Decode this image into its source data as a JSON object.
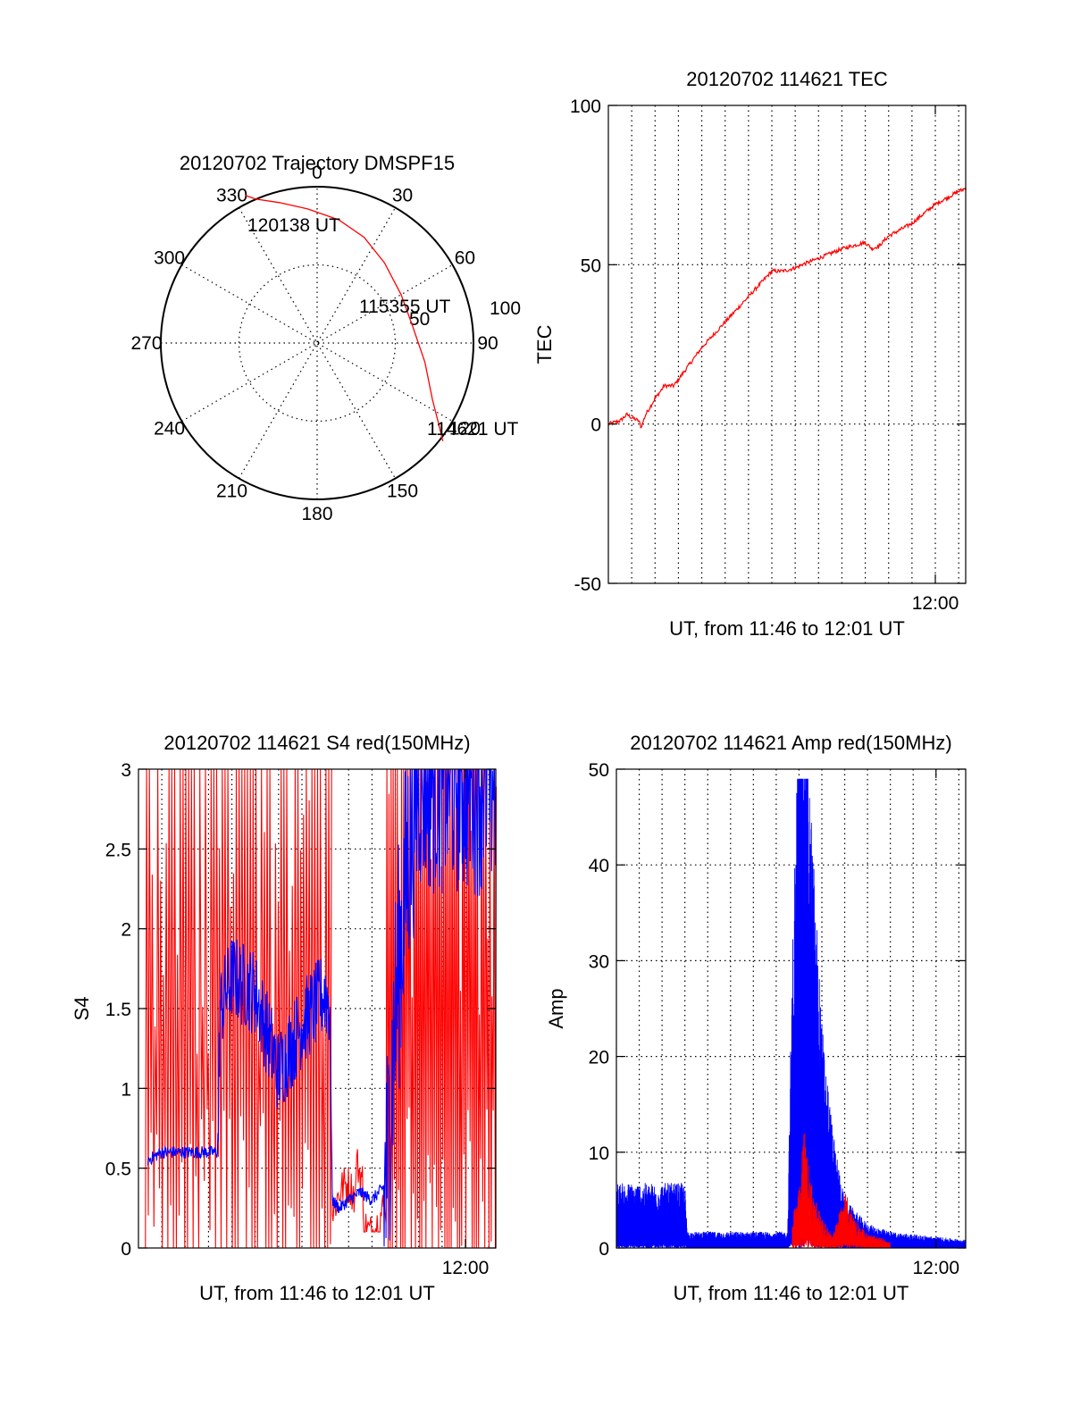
{
  "polar": {
    "title": "20120702 Trajectory DMSPF15",
    "azimuth_ticks": [
      "0",
      "30",
      "60",
      "90",
      "120",
      "150",
      "180",
      "210",
      "240",
      "270",
      "300",
      "330"
    ],
    "radial_labels": [
      "50",
      "100"
    ],
    "annotations": [
      "120138 UT",
      "115355 UT",
      "114621 UT"
    ],
    "line_color": "#ff0000"
  },
  "chart_data": [
    {
      "type": "polar-line",
      "title": "20120702 Trajectory DMSPF15",
      "series": [
        {
          "azimuth": [
            334,
            337,
            345,
            356,
            10,
            24,
            40,
            60,
            80,
            100,
            116,
            124,
            128
          ],
          "radius": [
            105,
            100,
            93,
            86,
            80,
            74,
            67,
            62,
            62,
            70,
            82,
            94,
            102
          ]
        }
      ],
      "point_labels": [
        {
          "label": "120138 UT",
          "azimuth": 334,
          "radius": 105
        },
        {
          "label": "115355 UT",
          "azimuth": 58,
          "radius": 62
        },
        {
          "label": "114621 UT",
          "azimuth": 128,
          "radius": 102
        }
      ],
      "rlim": [
        0,
        100
      ]
    },
    {
      "type": "line",
      "title": "20120702 114621 TEC",
      "xlabel": "UT, from 11:46 to 12:01 UT",
      "ylabel": "TEC",
      "xlim": [
        0,
        15.3
      ],
      "ylim": [
        -50,
        100
      ],
      "yticks": [
        -50,
        0,
        50,
        100
      ],
      "xtick_label": "12:00",
      "series": [
        {
          "color": "#ff0000",
          "x": [
            0,
            0.5,
            0.8,
            1.0,
            1.3,
            1.4,
            1.6,
            2.0,
            2.4,
            2.8,
            3.0,
            3.5,
            4.0,
            4.5,
            5.0,
            5.5,
            6.0,
            6.5,
            7.0,
            7.5,
            8.0,
            8.3,
            9.0,
            10.0,
            11.0,
            11.3,
            11.6,
            12.0,
            12.5,
            13.0,
            13.5,
            14.0,
            14.5,
            15.0,
            15.3
          ],
          "y": [
            0,
            1,
            3,
            2,
            1,
            -1,
            3,
            8,
            12,
            12,
            14,
            19,
            24,
            28,
            32,
            36,
            40,
            44,
            48,
            48,
            49,
            50,
            52,
            55,
            57,
            55,
            56,
            59,
            61,
            63,
            66,
            69,
            71,
            73,
            74
          ]
        }
      ]
    },
    {
      "type": "line",
      "title": "20120702 114621 S4 red(150MHz)",
      "xlabel": "UT, from 11:46 to 12:01 UT",
      "ylabel": "S4",
      "xlim": [
        0,
        15.3
      ],
      "ylim": [
        0,
        3
      ],
      "yticks": [
        0,
        0.5,
        1,
        1.5,
        2,
        2.5,
        3
      ],
      "ytick_labels": [
        "0",
        "0.5",
        "1",
        "1.5",
        "2",
        "2.5",
        "3"
      ],
      "xtick_label": "12:00",
      "series": [
        {
          "color": "#0000ff",
          "x": [
            0.4,
            1.0,
            2.0,
            3.4,
            3.5,
            4.0,
            5.0,
            6.0,
            7.0,
            8.0,
            8.2,
            8.3,
            8.6,
            9.0,
            9.5,
            10.0,
            10.6,
            11.0,
            11.5,
            12.0,
            13.0,
            14.0,
            15.3
          ],
          "y": [
            0.55,
            0.6,
            0.6,
            0.6,
            1.5,
            1.7,
            1.6,
            1.1,
            1.4,
            1.6,
            1.5,
            0.3,
            0.25,
            0.3,
            0.35,
            0.3,
            0.4,
            1.5,
            2.4,
            3.0,
            3.0,
            3.0,
            3.0
          ]
        },
        {
          "color": "#ff0000",
          "x": [
            8.3,
            9.0,
            10.0,
            10.6,
            11.0,
            11.5
          ],
          "y": [
            0.3,
            0.4,
            0.25,
            0.6,
            1.5,
            2.2
          ],
          "note": "dense noisy spikes between 0 and 3 throughout 11:46-11:54 and 11:57-12:01"
        }
      ]
    },
    {
      "type": "line",
      "title": "20120702 114621 Amp red(150MHz)",
      "xlabel": "UT, from 11:46 to 12:01 UT",
      "ylabel": "Amp",
      "xlim": [
        0,
        15.3
      ],
      "ylim": [
        0,
        50
      ],
      "yticks": [
        0,
        10,
        20,
        30,
        40,
        50
      ],
      "xtick_label": "12:00",
      "series": [
        {
          "color": "#0000ff",
          "x": [
            0,
            3.0,
            3.1,
            5.0,
            7.5,
            7.7,
            8.0,
            8.2,
            8.5,
            9.0,
            9.5,
            10.0,
            11.0,
            12.0,
            15.3
          ],
          "y": [
            4,
            4,
            1,
            1,
            1,
            18,
            35,
            46,
            28,
            14,
            7,
            3,
            1.5,
            1,
            0.5
          ]
        },
        {
          "color": "#ff0000",
          "x": [
            7.7,
            8.0,
            8.2,
            8.5,
            9.0,
            9.5,
            10.0,
            10.5,
            11.0,
            12.0
          ],
          "y": [
            2,
            5,
            9,
            5,
            2,
            1,
            4,
            2,
            1,
            0.5
          ]
        }
      ]
    }
  ]
}
